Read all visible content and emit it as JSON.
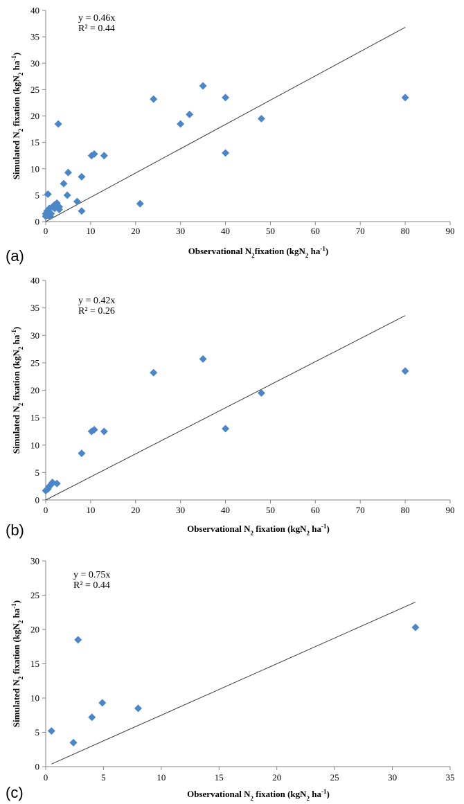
{
  "chart_data": [
    {
      "type": "scatter",
      "panel_label": "(a)",
      "equation": "y = 0.46x",
      "r_squared": "R² = 0.44",
      "trendline_slope": 0.46,
      "xlim": [
        0,
        90
      ],
      "ylim": [
        0,
        40
      ],
      "x_ticks": [
        0,
        10,
        20,
        30,
        40,
        50,
        60,
        70,
        80,
        90
      ],
      "y_ticks": [
        0,
        5,
        10,
        15,
        20,
        25,
        30,
        35,
        40
      ],
      "xlabel": {
        "pre": "Observational N",
        "sub": "2",
        "post": "fixation (kgN",
        "sub2": "2",
        "post2": " ha",
        "sup": "-1",
        "end": ")"
      },
      "ylabel": {
        "pre": "Simulated N",
        "sub": "2",
        "post": " fixation (kgN",
        "sub2": "2",
        "post2": " ha",
        "sup": "-1",
        "end": ")"
      },
      "grid": false,
      "marker_color": "#4a86c8",
      "points": [
        [
          0,
          1.5
        ],
        [
          0,
          1.0
        ],
        [
          0.3,
          2.0
        ],
        [
          0.5,
          1.2
        ],
        [
          0.5,
          5.2
        ],
        [
          0.8,
          2.5
        ],
        [
          1,
          1.0
        ],
        [
          1.2,
          1.5
        ],
        [
          1.5,
          2.8
        ],
        [
          2,
          3.2
        ],
        [
          2,
          2.5
        ],
        [
          2.5,
          3.5
        ],
        [
          2.8,
          18.5
        ],
        [
          3,
          2.3
        ],
        [
          3,
          2.8
        ],
        [
          4,
          7.2
        ],
        [
          4.8,
          5.0
        ],
        [
          5,
          9.3
        ],
        [
          7,
          3.8
        ],
        [
          8,
          8.5
        ],
        [
          8,
          2.0
        ],
        [
          10.2,
          12.5
        ],
        [
          10.8,
          12.8
        ],
        [
          13,
          12.5
        ],
        [
          21,
          3.4
        ],
        [
          24,
          23.2
        ],
        [
          30,
          18.5
        ],
        [
          32,
          20.3
        ],
        [
          35,
          25.7
        ],
        [
          40,
          23.5
        ],
        [
          40,
          13.0
        ],
        [
          48,
          19.5
        ],
        [
          80,
          23.5
        ]
      ]
    },
    {
      "type": "scatter",
      "panel_label": "(b)",
      "equation": "y = 0.42x",
      "r_squared": "R² = 0.26",
      "trendline_slope": 0.42,
      "xlim": [
        0,
        90
      ],
      "ylim": [
        0,
        40
      ],
      "x_ticks": [
        0,
        10,
        20,
        30,
        40,
        50,
        60,
        70,
        80,
        90
      ],
      "y_ticks": [
        0,
        5,
        10,
        15,
        20,
        25,
        30,
        35,
        40
      ],
      "xlabel": {
        "pre": "Observational N",
        "sub": "2",
        "post": " fixation (kgN",
        "sub2": "2",
        "post2": " ha",
        "sup": "-1",
        "end": ")"
      },
      "ylabel": {
        "pre": "Simulated N",
        "sub": "2",
        "post": " fixation (kgN",
        "sub2": "2",
        "post2": " ha",
        "sup": "-1",
        "end": ")"
      },
      "grid": false,
      "marker_color": "#4a86c8",
      "points": [
        [
          0,
          1.7
        ],
        [
          0.5,
          2.0
        ],
        [
          0.8,
          2.5
        ],
        [
          1.2,
          2.8
        ],
        [
          1.5,
          3.2
        ],
        [
          2.5,
          3.0
        ],
        [
          8,
          8.5
        ],
        [
          10.2,
          12.5
        ],
        [
          10.8,
          12.8
        ],
        [
          13,
          12.5
        ],
        [
          24,
          23.2
        ],
        [
          35,
          25.7
        ],
        [
          40,
          13.0
        ],
        [
          48,
          19.5
        ],
        [
          80,
          23.5
        ]
      ]
    },
    {
      "type": "scatter",
      "panel_label": "(c)",
      "equation": "y = 0.75x",
      "r_squared": "R² = 0.44",
      "trendline_slope": 0.75,
      "xlim": [
        0,
        35
      ],
      "ylim": [
        0,
        30
      ],
      "x_ticks": [
        0,
        5,
        10,
        15,
        20,
        25,
        30,
        35
      ],
      "y_ticks": [
        0,
        5,
        10,
        15,
        20,
        25,
        30
      ],
      "xlabel": {
        "pre": "Observational N",
        "sub": "2",
        "post": " fixation (kgN",
        "sub2": "2",
        "post2": " ha",
        "sup": "-1",
        "end": ")"
      },
      "ylabel": {
        "pre": "Simulated N",
        "sub": "2",
        "post": " fixation (kgN",
        "sub2": "2",
        "post2": " ha",
        "sup": "-1",
        "end": ")"
      },
      "grid": false,
      "marker_color": "#4a86c8",
      "points": [
        [
          0.5,
          5.2
        ],
        [
          2.4,
          3.5
        ],
        [
          2.8,
          18.5
        ],
        [
          4,
          7.2
        ],
        [
          4.9,
          9.3
        ],
        [
          8,
          8.5
        ],
        [
          32,
          20.3
        ]
      ]
    }
  ]
}
